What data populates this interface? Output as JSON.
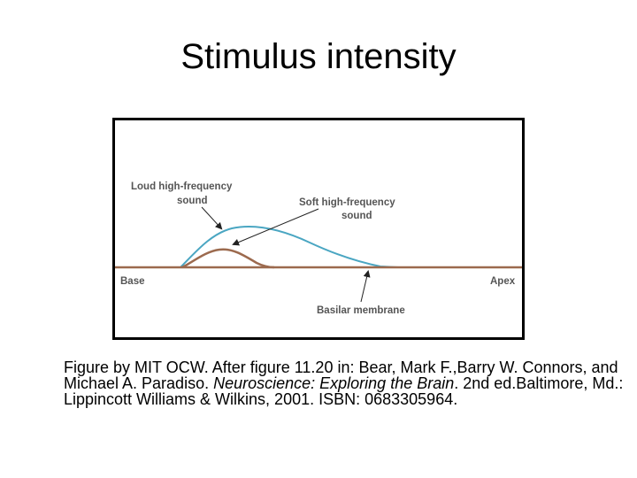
{
  "slide": {
    "title": "Stimulus intensity"
  },
  "figure": {
    "labels": {
      "loud_line1": "Loud high-frequency",
      "loud_line2": "sound",
      "soft_line1": "Soft high-frequency",
      "soft_line2": "sound",
      "base": "Base",
      "apex": "Apex",
      "membrane": "Basilar membrane"
    },
    "colors": {
      "loud_curve": "#4aa6c2",
      "soft_curve": "#9c6a4e",
      "baseline": "#9c6a4e",
      "label_text": "#555555",
      "arrow": "#222222"
    }
  },
  "caption": {
    "part1": "Figure by MIT OCW. After figure 11.20 in: Bear, Mark F.,Barry W. Connors, and Michael A. Paradiso. ",
    "book_title": "Neuroscience: Exploring the Brain",
    "part2": ". 2nd ed.Baltimore, Md.: Lippincott Williams & Wilkins, 2001. ISBN: 0683305964."
  }
}
